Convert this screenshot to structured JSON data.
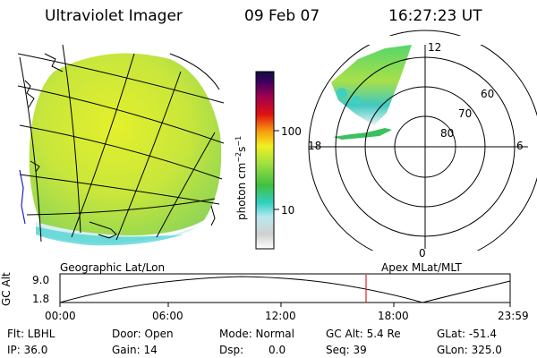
{
  "header": {
    "instrument": "Ultraviolet Imager",
    "date": "09 Feb 07",
    "time": "16:27:23 UT"
  },
  "colorbar": {
    "unit_label": "photon cm",
    "unit_sup1": "−2",
    "unit_mid": "s",
    "unit_sup2": "−1",
    "ticks": [
      "100",
      "10"
    ]
  },
  "polar_plot": {
    "title": "Apex  MLat/MLT",
    "mlt_labels": {
      "top": "12",
      "left": "18",
      "right": "6",
      "bottom": "0"
    },
    "lat_labels": [
      "60",
      "70",
      "80"
    ]
  },
  "geo_plot": {
    "title": "Geographic Lat/Lon"
  },
  "altitude_plot": {
    "ylabel": "GC Alt",
    "y_ticks": [
      "9.0",
      "1.8"
    ],
    "x_ticks": [
      "00:00",
      "06:00",
      "12:00",
      "18:00",
      "23:59"
    ],
    "current_time_marker": "16:27"
  },
  "status": {
    "flt": "Flt: LBHL",
    "ip": "IP: 36.0",
    "door": "Door: Open",
    "gain": "Gain: 14",
    "mode": "Mode: Normal",
    "dsp_label": "Dsp:",
    "dsp_value": "0.0",
    "gc_alt": "GC Alt: 5.4 Re",
    "seq": "Seq: 39",
    "glat": "GLat: -51.4",
    "glon": "GLon: 325.0"
  },
  "colors": {
    "auroral_fill": "#c8e63c",
    "marker_line": "#e02020"
  }
}
